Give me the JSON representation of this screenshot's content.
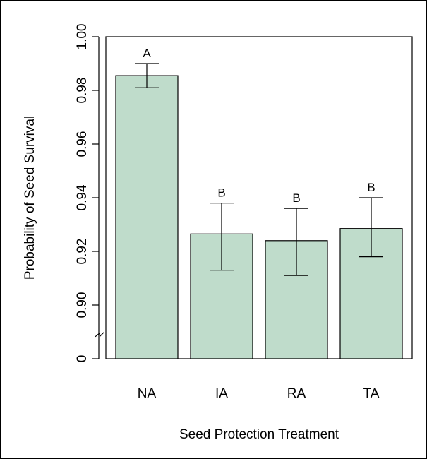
{
  "chart_data": {
    "type": "bar",
    "title": "",
    "xlabel": "Seed Protection Treatment",
    "ylabel": "Probability of Seed Survival",
    "categories": [
      "NA",
      "IA",
      "RA",
      "TA"
    ],
    "values": [
      0.9855,
      0.9265,
      0.924,
      0.9285
    ],
    "error_low": [
      0.981,
      0.913,
      0.911,
      0.918
    ],
    "error_high": [
      0.99,
      0.938,
      0.936,
      0.94
    ],
    "significance_letters": [
      "A",
      "B",
      "B",
      "B"
    ],
    "ylim": [
      0.88,
      1.0
    ],
    "axis_break": true,
    "y_ticks": [
      {
        "value": 0.88,
        "label": "0"
      },
      {
        "value": 0.9,
        "label": "0.90"
      },
      {
        "value": 0.92,
        "label": "0.92"
      },
      {
        "value": 0.94,
        "label": "0.94"
      },
      {
        "value": 0.96,
        "label": "0.96"
      },
      {
        "value": 0.98,
        "label": "0.98"
      },
      {
        "value": 1.0,
        "label": "1.00"
      }
    ],
    "bar_color": "#bfdccb",
    "grid": false
  }
}
